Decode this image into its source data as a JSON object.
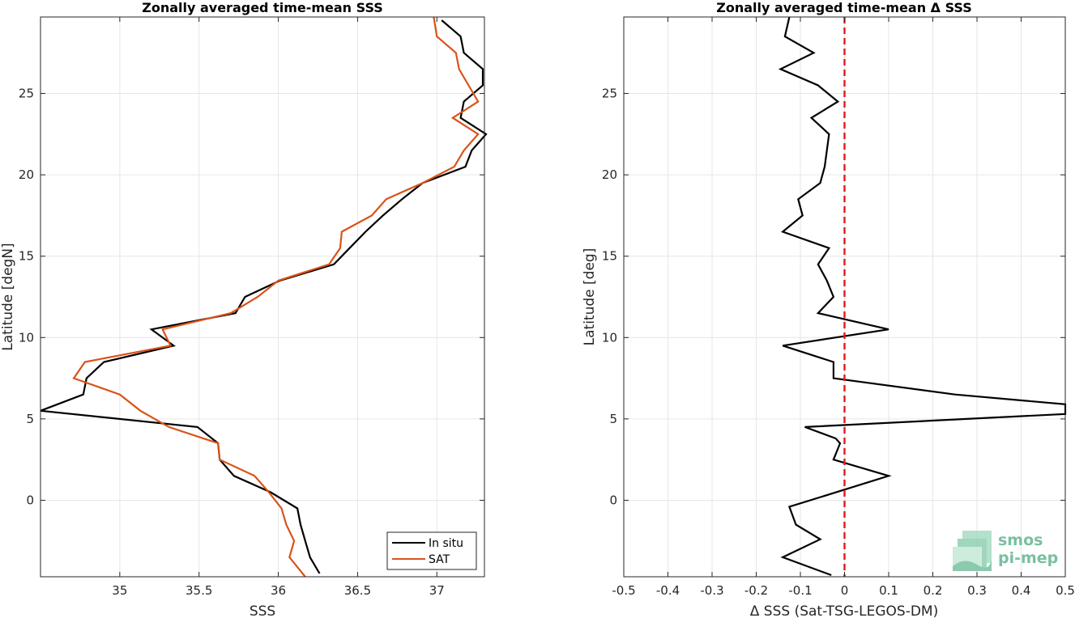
{
  "chart_data": [
    {
      "type": "line",
      "title": "Zonally averaged time-mean SSS",
      "xlabel": "SSS",
      "ylabel": "Latitude [degN]",
      "xlim": [
        34.5,
        37.3
      ],
      "ylim": [
        -4.7,
        29.7
      ],
      "x_ticks": [
        35,
        35.5,
        36,
        36.5,
        37
      ],
      "x_tick_labels": [
        "35",
        "35.5",
        "36",
        "36.5",
        "37"
      ],
      "y_ticks": [
        0,
        5,
        10,
        15,
        20,
        25
      ],
      "y_tick_labels": [
        "0",
        "5",
        "10",
        "15",
        "20",
        "25"
      ],
      "grid": true,
      "legend": "bottom-right",
      "series": [
        {
          "name": "In situ",
          "color": "#000000",
          "points": [
            [
              36.26,
              -4.5
            ],
            [
              36.2,
              -3.5
            ],
            [
              36.17,
              -2.5
            ],
            [
              36.14,
              -1.5
            ],
            [
              36.12,
              -0.5
            ],
            [
              35.95,
              0.5
            ],
            [
              35.72,
              1.5
            ],
            [
              35.63,
              2.5
            ],
            [
              35.62,
              3.5
            ],
            [
              35.49,
              4.5
            ],
            [
              34.5,
              5.5
            ],
            [
              34.77,
              6.5
            ],
            [
              34.79,
              7.5
            ],
            [
              34.9,
              8.5
            ],
            [
              35.34,
              9.5
            ],
            [
              35.2,
              10.5
            ],
            [
              35.73,
              11.5
            ],
            [
              35.79,
              12.5
            ],
            [
              36.01,
              13.5
            ],
            [
              36.35,
              14.5
            ],
            [
              36.45,
              15.5
            ],
            [
              36.55,
              16.5
            ],
            [
              36.66,
              17.5
            ],
            [
              36.78,
              18.5
            ],
            [
              36.91,
              19.5
            ],
            [
              37.18,
              20.5
            ],
            [
              37.22,
              21.5
            ],
            [
              37.31,
              22.5
            ],
            [
              37.15,
              23.5
            ],
            [
              37.17,
              24.5
            ],
            [
              37.29,
              25.5
            ],
            [
              37.29,
              26.5
            ],
            [
              37.17,
              27.5
            ],
            [
              37.15,
              28.5
            ],
            [
              37.03,
              29.5
            ]
          ]
        },
        {
          "name": "SAT",
          "color": "#d95319",
          "points": [
            [
              36.17,
              -4.7
            ],
            [
              36.07,
              -3.5
            ],
            [
              36.1,
              -2.5
            ],
            [
              36.05,
              -1.5
            ],
            [
              36.02,
              -0.5
            ],
            [
              35.94,
              0.5
            ],
            [
              35.85,
              1.5
            ],
            [
              35.63,
              2.5
            ],
            [
              35.62,
              3.5
            ],
            [
              35.31,
              4.5
            ],
            [
              35.13,
              5.5
            ],
            [
              35.0,
              6.5
            ],
            [
              34.71,
              7.5
            ],
            [
              34.78,
              8.5
            ],
            [
              35.32,
              9.5
            ],
            [
              35.27,
              10.5
            ],
            [
              35.7,
              11.5
            ],
            [
              35.87,
              12.5
            ],
            [
              36.0,
              13.5
            ],
            [
              36.32,
              14.5
            ],
            [
              36.39,
              15.5
            ],
            [
              36.4,
              16.5
            ],
            [
              36.59,
              17.5
            ],
            [
              36.68,
              18.5
            ],
            [
              36.91,
              19.5
            ],
            [
              37.11,
              20.5
            ],
            [
              37.17,
              21.5
            ],
            [
              37.26,
              22.5
            ],
            [
              37.1,
              23.5
            ],
            [
              37.26,
              24.5
            ],
            [
              37.2,
              25.5
            ],
            [
              37.14,
              26.5
            ],
            [
              37.12,
              27.5
            ],
            [
              37.0,
              28.5
            ],
            [
              36.98,
              29.7
            ]
          ]
        }
      ]
    },
    {
      "type": "line",
      "title": "Zonally averaged time-mean Δ SSS",
      "xlabel": "Δ SSS (Sat-TSG-LEGOS-DM)",
      "ylabel": "Latitude [deg]",
      "xlim": [
        -0.5,
        0.5
      ],
      "ylim": [
        -4.7,
        29.7
      ],
      "x_ticks": [
        -0.5,
        -0.4,
        -0.3,
        -0.2,
        -0.1,
        0,
        0.1,
        0.2,
        0.3,
        0.4,
        0.5
      ],
      "x_tick_labels": [
        "-0.5",
        "-0.4",
        "-0.3",
        "-0.2",
        "-0.1",
        "0",
        "0.1",
        "0.2",
        "0.3",
        "0.4",
        "0.5"
      ],
      "y_ticks": [
        0,
        5,
        10,
        15,
        20,
        25
      ],
      "y_tick_labels": [
        "0",
        "5",
        "10",
        "15",
        "20",
        "25"
      ],
      "grid": true,
      "reference_line": {
        "x": 0,
        "color": "#e41a1c",
        "style": "dashed"
      },
      "series": [
        {
          "name": "",
          "color": "#000000",
          "points": [
            [
              -0.03,
              -4.6
            ],
            [
              -0.14,
              -3.5
            ],
            [
              -0.055,
              -2.4
            ],
            [
              -0.11,
              -1.5
            ],
            [
              -0.125,
              -0.4
            ],
            [
              0.1,
              1.5
            ],
            [
              -0.025,
              2.5
            ],
            [
              -0.01,
              3.5
            ],
            [
              -0.02,
              3.8
            ],
            [
              -0.09,
              4.5
            ],
            [
              0.5,
              5.3
            ],
            [
              0.5,
              5.9
            ],
            [
              0.25,
              6.5
            ],
            [
              -0.025,
              7.5
            ],
            [
              -0.025,
              8.5
            ],
            [
              -0.14,
              9.5
            ],
            [
              0.1,
              10.5
            ],
            [
              -0.06,
              11.5
            ],
            [
              -0.025,
              12.5
            ],
            [
              -0.04,
              13.5
            ],
            [
              -0.06,
              14.5
            ],
            [
              -0.035,
              15.5
            ],
            [
              -0.14,
              16.5
            ],
            [
              -0.095,
              17.5
            ],
            [
              -0.105,
              18.5
            ],
            [
              -0.055,
              19.5
            ],
            [
              -0.045,
              20.5
            ],
            [
              -0.04,
              21.5
            ],
            [
              -0.035,
              22.5
            ],
            [
              -0.075,
              23.5
            ],
            [
              -0.015,
              24.5
            ],
            [
              -0.06,
              25.5
            ],
            [
              -0.145,
              26.5
            ],
            [
              -0.07,
              27.5
            ],
            [
              -0.135,
              28.5
            ],
            [
              -0.125,
              29.7
            ]
          ]
        }
      ]
    }
  ],
  "logo": {
    "line1": "smos",
    "line2": "pi-mep",
    "color": "#79c0a0"
  }
}
